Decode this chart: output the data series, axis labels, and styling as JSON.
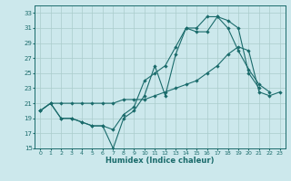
{
  "xlabel": "Humidex (Indice chaleur)",
  "bg_color": "#cce8ec",
  "grid_color": "#aacccc",
  "line_color": "#1a6b6b",
  "xlim": [
    -0.5,
    23.5
  ],
  "ylim": [
    15,
    34
  ],
  "xticks": [
    0,
    1,
    2,
    3,
    4,
    5,
    6,
    7,
    8,
    9,
    10,
    11,
    12,
    13,
    14,
    15,
    16,
    17,
    18,
    19,
    20,
    21,
    22,
    23
  ],
  "yticks": [
    15,
    17,
    19,
    21,
    23,
    25,
    27,
    29,
    31,
    33
  ],
  "line1_x": [
    0,
    1,
    2,
    3,
    4,
    5,
    6,
    7,
    8,
    9,
    10,
    11,
    12,
    13,
    14,
    15,
    16,
    17,
    18,
    19,
    20,
    21
  ],
  "line1_y": [
    20.0,
    21.0,
    19.0,
    19.0,
    18.5,
    18.0,
    18.0,
    15.0,
    19.0,
    20.0,
    22.0,
    26.0,
    22.0,
    27.5,
    31.0,
    30.5,
    30.5,
    32.5,
    32.0,
    31.0,
    25.0,
    23.0
  ],
  "line2_x": [
    0,
    1,
    2,
    3,
    4,
    5,
    6,
    7,
    8,
    9,
    10,
    11,
    12,
    13,
    14,
    15,
    16,
    17,
    18,
    19,
    20,
    21,
    22
  ],
  "line2_y": [
    20.0,
    21.0,
    19.0,
    19.0,
    18.5,
    18.0,
    18.0,
    17.5,
    19.5,
    20.5,
    24.0,
    25.0,
    26.0,
    28.5,
    31.0,
    31.0,
    32.5,
    32.5,
    31.0,
    28.0,
    25.5,
    23.5,
    22.5
  ],
  "line3_x": [
    0,
    1,
    2,
    3,
    4,
    5,
    6,
    7,
    8,
    9,
    10,
    11,
    12,
    13,
    14,
    15,
    16,
    17,
    18,
    19,
    20,
    21,
    22,
    23
  ],
  "line3_y": [
    20.0,
    21.0,
    21.0,
    21.0,
    21.0,
    21.0,
    21.0,
    21.0,
    21.5,
    21.5,
    21.5,
    22.0,
    22.5,
    23.0,
    23.5,
    24.0,
    25.0,
    26.0,
    27.5,
    28.5,
    28.0,
    22.5,
    22.0,
    22.5
  ]
}
